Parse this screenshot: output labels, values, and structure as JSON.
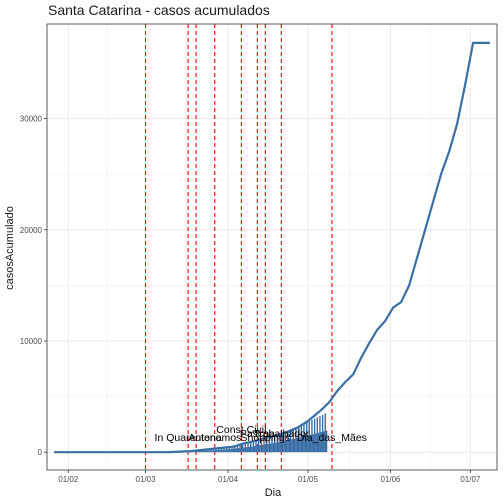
{
  "chart_data": {
    "type": "line",
    "title": "Santa Catarina - casos acumulados",
    "xlabel": "Dia",
    "ylabel": "casosAcumulado",
    "x_axis": {
      "type": "date",
      "range": [
        "2020-01-24",
        "2020-07-11"
      ],
      "ticks": [
        {
          "date": "2020-02-01",
          "label": "01/02"
        },
        {
          "date": "2020-03-01",
          "label": "01/03"
        },
        {
          "date": "2020-04-01",
          "label": "01/04"
        },
        {
          "date": "2020-05-01",
          "label": "01/05"
        },
        {
          "date": "2020-06-01",
          "label": "01/06"
        },
        {
          "date": "2020-07-01",
          "label": "01/07"
        }
      ]
    },
    "y_axis": {
      "range": [
        -1600,
        38500
      ],
      "ticks": [
        0,
        10000,
        20000,
        30000
      ]
    },
    "grid": true,
    "line_color": "#3a6fa5",
    "event_line_color": "#ff0000",
    "events": [
      {
        "date": "2020-03-01",
        "label": ""
      },
      {
        "date": "2020-03-17",
        "label": "In Quarentena"
      },
      {
        "date": "2020-03-20",
        "label": ""
      },
      {
        "date": "2020-03-27",
        "label": "Autonomos"
      },
      {
        "date": "2020-04-06",
        "label": "Const Civil"
      },
      {
        "date": "2020-04-12",
        "label": "Pascoa"
      },
      {
        "date": "2020-04-15",
        "label": "Shoppings"
      },
      {
        "date": "2020-04-21",
        "label": "Trabalhador"
      },
      {
        "date": "2020-05-10",
        "label": "Dia_das_Mães"
      }
    ],
    "series": [
      {
        "x": [
          "2020-01-27",
          "2020-02-01",
          "2020-02-10",
          "2020-02-20",
          "2020-03-01",
          "2020-03-10",
          "2020-03-14",
          "2020-03-18",
          "2020-03-22",
          "2020-03-26",
          "2020-03-30",
          "2020-04-03",
          "2020-04-07",
          "2020-04-11",
          "2020-04-15",
          "2020-04-19",
          "2020-04-23",
          "2020-04-27",
          "2020-05-01",
          "2020-05-03",
          "2020-05-06",
          "2020-05-09",
          "2020-05-12",
          "2020-05-15",
          "2020-05-18",
          "2020-05-21",
          "2020-05-24",
          "2020-05-27",
          "2020-05-30",
          "2020-06-02",
          "2020-06-05",
          "2020-06-08",
          "2020-06-11",
          "2020-06-14",
          "2020-06-17",
          "2020-06-20",
          "2020-06-23",
          "2020-06-26",
          "2020-06-29",
          "2020-07-02",
          "2020-07-05",
          "2020-07-08"
        ],
        "values": [
          0,
          0,
          0,
          0,
          0,
          10,
          50,
          100,
          200,
          300,
          400,
          500,
          800,
          1000,
          1300,
          1500,
          1800,
          2200,
          2800,
          3200,
          3800,
          4500,
          5500,
          6300,
          7000,
          8500,
          9800,
          11000,
          11800,
          13000,
          13500,
          15000,
          17500,
          20000,
          22500,
          25000,
          27000,
          29500,
          33000,
          36800,
          36800,
          36800
        ]
      }
    ]
  }
}
